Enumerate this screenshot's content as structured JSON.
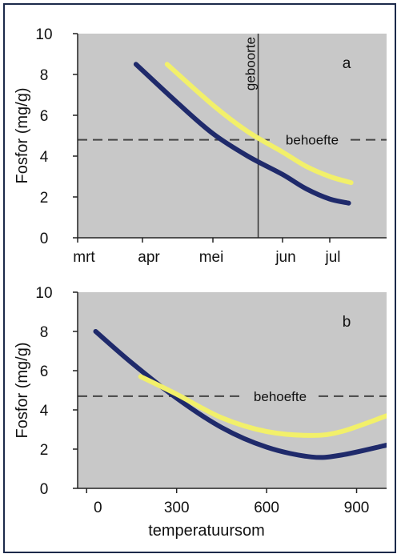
{
  "colors": {
    "plot_background": "#c8c8c8",
    "frame": "#1c2a4a",
    "series_dark": "#1f2a6b",
    "series_yellow": "#f2f06a",
    "reference": "#444444"
  },
  "chart_data": [
    {
      "type": "line",
      "panel_label": "a",
      "ylabel": "Fosfor (mg/g)",
      "xlabel": "",
      "x_ticks": [
        "mrt",
        "apr",
        "mei",
        "jun",
        "jul"
      ],
      "y_ticks": [
        "0",
        "2",
        "4",
        "6",
        "8",
        "10"
      ],
      "ylim": [
        0,
        10
      ],
      "xlim": [
        0,
        5
      ],
      "grid": false,
      "series": [
        {
          "color": "#1f2a6b",
          "x": [
            0.9,
            1.5,
            2.0,
            2.5,
            3.0,
            3.5,
            4.0,
            4.4
          ],
          "y": [
            8.5,
            6.6,
            5.1,
            4.0,
            3.1,
            2.4,
            1.9,
            1.7
          ]
        },
        {
          "color": "#f2f06a",
          "x": [
            1.35,
            2.0,
            2.5,
            3.0,
            3.5,
            4.0,
            4.45
          ],
          "y": [
            8.5,
            6.5,
            5.2,
            4.2,
            3.5,
            3.0,
            2.7
          ]
        }
      ],
      "annotations": {
        "hline": {
          "y": 4.8,
          "label": "behoefte"
        },
        "vline": {
          "x": 2.65,
          "label": "geboorte"
        }
      }
    },
    {
      "type": "line",
      "panel_label": "b",
      "ylabel": "Fosfor (mg/g)",
      "xlabel": "temperatuursom",
      "x_ticks": [
        "0",
        "300",
        "600",
        "900"
      ],
      "y_ticks": [
        "0",
        "2",
        "4",
        "6",
        "8",
        "10"
      ],
      "ylim": [
        0,
        10
      ],
      "xlim": [
        -30,
        1000
      ],
      "grid": false,
      "series": [
        {
          "color": "#1f2a6b",
          "x": [
            30,
            150,
            300,
            450,
            600,
            750,
            850,
            1000
          ],
          "y": [
            8.0,
            6.4,
            4.6,
            3.1,
            2.1,
            1.6,
            1.7,
            2.2
          ]
        },
        {
          "color": "#f2f06a",
          "x": [
            180,
            300,
            450,
            600,
            750,
            850,
            1000
          ],
          "y": [
            5.7,
            4.8,
            3.6,
            2.9,
            2.7,
            2.9,
            3.7
          ]
        }
      ],
      "annotations": {
        "hline": {
          "y": 4.7,
          "label": "behoefte"
        }
      }
    }
  ]
}
